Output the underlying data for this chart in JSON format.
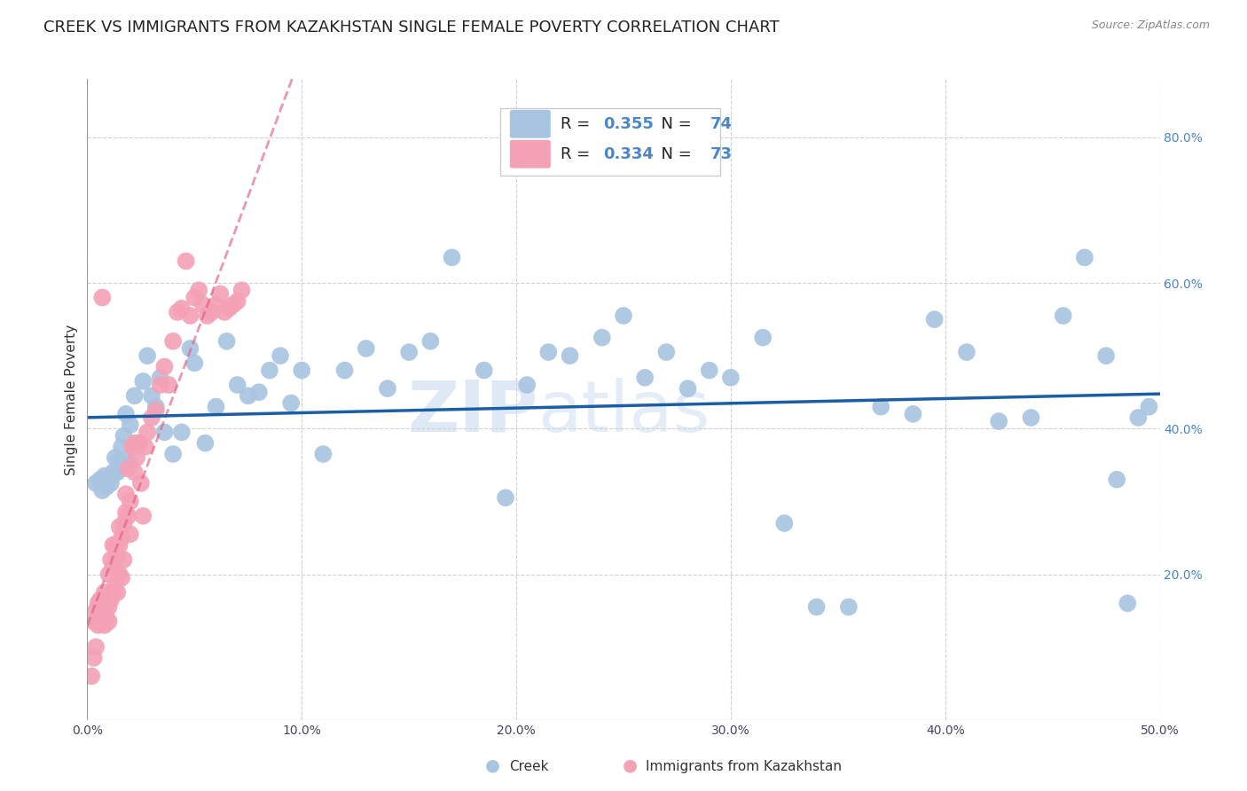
{
  "title": "CREEK VS IMMIGRANTS FROM KAZAKHSTAN SINGLE FEMALE POVERTY CORRELATION CHART",
  "source": "Source: ZipAtlas.com",
  "ylabel": "Single Female Poverty",
  "xlim": [
    0.0,
    0.5
  ],
  "ylim": [
    0.0,
    0.88
  ],
  "xticks": [
    0.0,
    0.1,
    0.2,
    0.3,
    0.4,
    0.5
  ],
  "xticklabels": [
    "0.0%",
    "10.0%",
    "20.0%",
    "30.0%",
    "40.0%",
    "50.0%"
  ],
  "yticks": [
    0.2,
    0.4,
    0.6,
    0.8
  ],
  "yticklabels": [
    "20.0%",
    "40.0%",
    "60.0%",
    "80.0%"
  ],
  "creek_R": 0.355,
  "creek_N": 74,
  "kazakh_R": 0.334,
  "kazakh_N": 73,
  "creek_color": "#a8c4e0",
  "kazakh_color": "#f4a0b5",
  "creek_line_color": "#1b5ea6",
  "kazakh_line_color": "#e06080",
  "background_color": "#ffffff",
  "grid_color": "#d0d0d0",
  "watermark": "ZIPAtlas",
  "watermark_color": "#c5d8ee",
  "title_fontsize": 13,
  "axis_label_fontsize": 11,
  "tick_fontsize": 10,
  "legend_fontsize": 13,
  "creek_x": [
    0.004,
    0.006,
    0.007,
    0.008,
    0.009,
    0.01,
    0.011,
    0.012,
    0.013,
    0.014,
    0.015,
    0.016,
    0.017,
    0.018,
    0.019,
    0.02,
    0.022,
    0.024,
    0.026,
    0.028,
    0.03,
    0.032,
    0.034,
    0.036,
    0.04,
    0.044,
    0.048,
    0.05,
    0.055,
    0.06,
    0.065,
    0.07,
    0.075,
    0.08,
    0.085,
    0.09,
    0.095,
    0.1,
    0.11,
    0.12,
    0.13,
    0.14,
    0.15,
    0.16,
    0.17,
    0.185,
    0.195,
    0.205,
    0.215,
    0.225,
    0.24,
    0.25,
    0.26,
    0.27,
    0.28,
    0.29,
    0.3,
    0.315,
    0.325,
    0.34,
    0.355,
    0.37,
    0.385,
    0.395,
    0.41,
    0.425,
    0.44,
    0.455,
    0.465,
    0.475,
    0.48,
    0.485,
    0.49,
    0.495
  ],
  "creek_y": [
    0.325,
    0.33,
    0.315,
    0.335,
    0.32,
    0.33,
    0.325,
    0.34,
    0.36,
    0.34,
    0.355,
    0.375,
    0.39,
    0.42,
    0.355,
    0.405,
    0.445,
    0.38,
    0.465,
    0.5,
    0.445,
    0.43,
    0.47,
    0.395,
    0.365,
    0.395,
    0.51,
    0.49,
    0.38,
    0.43,
    0.52,
    0.46,
    0.445,
    0.45,
    0.48,
    0.5,
    0.435,
    0.48,
    0.365,
    0.48,
    0.51,
    0.455,
    0.505,
    0.52,
    0.635,
    0.48,
    0.305,
    0.46,
    0.505,
    0.5,
    0.525,
    0.555,
    0.47,
    0.505,
    0.455,
    0.48,
    0.47,
    0.525,
    0.27,
    0.155,
    0.155,
    0.43,
    0.42,
    0.55,
    0.505,
    0.41,
    0.415,
    0.555,
    0.635,
    0.5,
    0.33,
    0.16,
    0.415,
    0.43
  ],
  "kazakh_x": [
    0.002,
    0.003,
    0.003,
    0.004,
    0.004,
    0.005,
    0.005,
    0.006,
    0.006,
    0.007,
    0.007,
    0.007,
    0.008,
    0.008,
    0.008,
    0.009,
    0.009,
    0.01,
    0.01,
    0.01,
    0.011,
    0.011,
    0.012,
    0.012,
    0.012,
    0.013,
    0.013,
    0.014,
    0.014,
    0.015,
    0.015,
    0.015,
    0.016,
    0.016,
    0.017,
    0.017,
    0.018,
    0.018,
    0.019,
    0.019,
    0.02,
    0.02,
    0.021,
    0.022,
    0.022,
    0.023,
    0.024,
    0.025,
    0.026,
    0.027,
    0.028,
    0.03,
    0.032,
    0.034,
    0.036,
    0.038,
    0.04,
    0.042,
    0.044,
    0.046,
    0.048,
    0.05,
    0.052,
    0.054,
    0.056,
    0.058,
    0.06,
    0.062,
    0.064,
    0.066,
    0.068,
    0.07,
    0.072
  ],
  "kazakh_y": [
    0.06,
    0.085,
    0.135,
    0.1,
    0.15,
    0.13,
    0.16,
    0.14,
    0.165,
    0.58,
    0.135,
    0.165,
    0.13,
    0.175,
    0.155,
    0.14,
    0.165,
    0.135,
    0.155,
    0.2,
    0.165,
    0.22,
    0.175,
    0.21,
    0.24,
    0.185,
    0.24,
    0.175,
    0.225,
    0.2,
    0.24,
    0.265,
    0.195,
    0.25,
    0.22,
    0.27,
    0.285,
    0.31,
    0.28,
    0.345,
    0.255,
    0.3,
    0.375,
    0.34,
    0.38,
    0.36,
    0.38,
    0.325,
    0.28,
    0.375,
    0.395,
    0.415,
    0.425,
    0.46,
    0.485,
    0.46,
    0.52,
    0.56,
    0.565,
    0.63,
    0.555,
    0.58,
    0.59,
    0.57,
    0.555,
    0.56,
    0.57,
    0.585,
    0.56,
    0.565,
    0.57,
    0.575,
    0.59
  ]
}
